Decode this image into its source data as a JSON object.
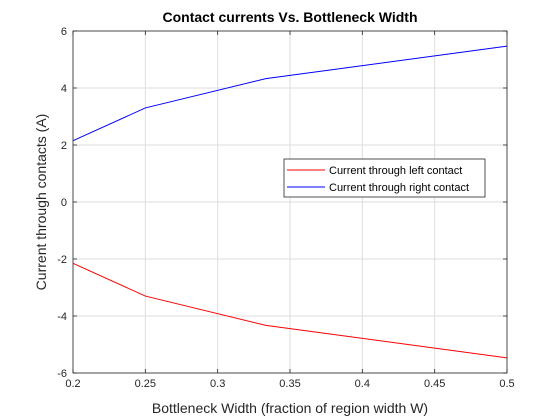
{
  "chart_data": {
    "type": "line",
    "title": "Contact currents Vs. Bottleneck Width",
    "xlabel": "Bottleneck Width (fraction of region width W)",
    "ylabel": "Current through contacts (A)",
    "xlim": [
      0.2,
      0.5
    ],
    "ylim": [
      -6,
      6
    ],
    "xticks": [
      0.2,
      0.25,
      0.3,
      0.35,
      0.4,
      0.45,
      0.5
    ],
    "xtick_labels": [
      "0.2",
      "0.25",
      "0.3",
      "0.35",
      "0.4",
      "0.45",
      "0.5"
    ],
    "yticks": [
      -6,
      -4,
      -2,
      0,
      2,
      4,
      6
    ],
    "ytick_labels": [
      "-6",
      "-4",
      "-2",
      "0",
      "2",
      "4",
      "6"
    ],
    "grid": true,
    "legend_position": "center-right",
    "x": [
      0.2,
      0.25,
      0.3333,
      0.5
    ],
    "series": [
      {
        "name": "Current through left contact",
        "color": "#ff0000",
        "values": [
          -2.15,
          -3.3,
          -4.33,
          -5.47
        ]
      },
      {
        "name": "Current through right contact",
        "color": "#0000ff",
        "values": [
          2.15,
          3.3,
          4.33,
          5.47
        ]
      }
    ]
  }
}
